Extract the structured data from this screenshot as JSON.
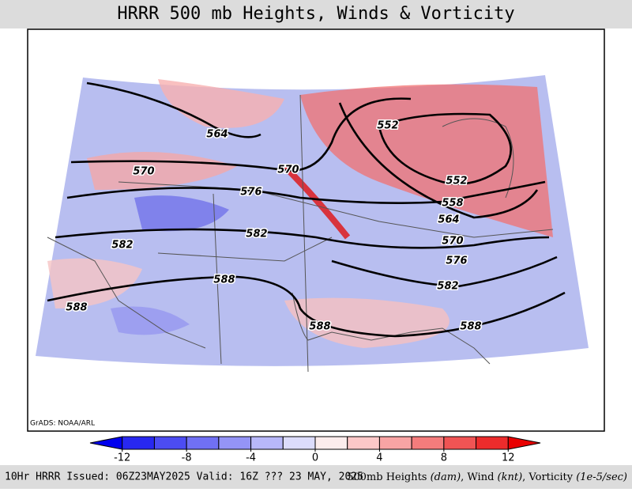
{
  "title": "HRRR 500 mb Heights, Winds & Vorticity",
  "credit": "GrADS: NOAA/ARL",
  "contour_labels": [
    564,
    570,
    570,
    576,
    582,
    582,
    588,
    588,
    588,
    588,
    552,
    552,
    558,
    564,
    570,
    576,
    582
  ],
  "colorbar": {
    "range": [
      -14,
      14
    ],
    "ticks": [
      -12,
      -8,
      -4,
      0,
      4,
      8,
      12
    ],
    "colors": [
      "#0000ee",
      "#2828f0",
      "#4c4cf2",
      "#7070f4",
      "#9494f6",
      "#b8b8fa",
      "#dcdcfc",
      "#fcecec",
      "#fcc8c8",
      "#f8a4a4",
      "#f47c7c",
      "#f05454",
      "#ec2c2c",
      "#e80000"
    ]
  },
  "footer": {
    "left": "10Hr HRRR Issued: 06Z23MAY2025 Valid: 16Z ??? 23 MAY, 2025",
    "right": [
      {
        "text": "500mb Heights ",
        "italic": false
      },
      {
        "text": "(dam)",
        "italic": true
      },
      {
        "text": ", Wind ",
        "italic": false
      },
      {
        "text": "(knt)",
        "italic": true
      },
      {
        "text": ", Vorticity ",
        "italic": false
      },
      {
        "text": "(1e-5/sec)",
        "italic": true
      }
    ]
  }
}
